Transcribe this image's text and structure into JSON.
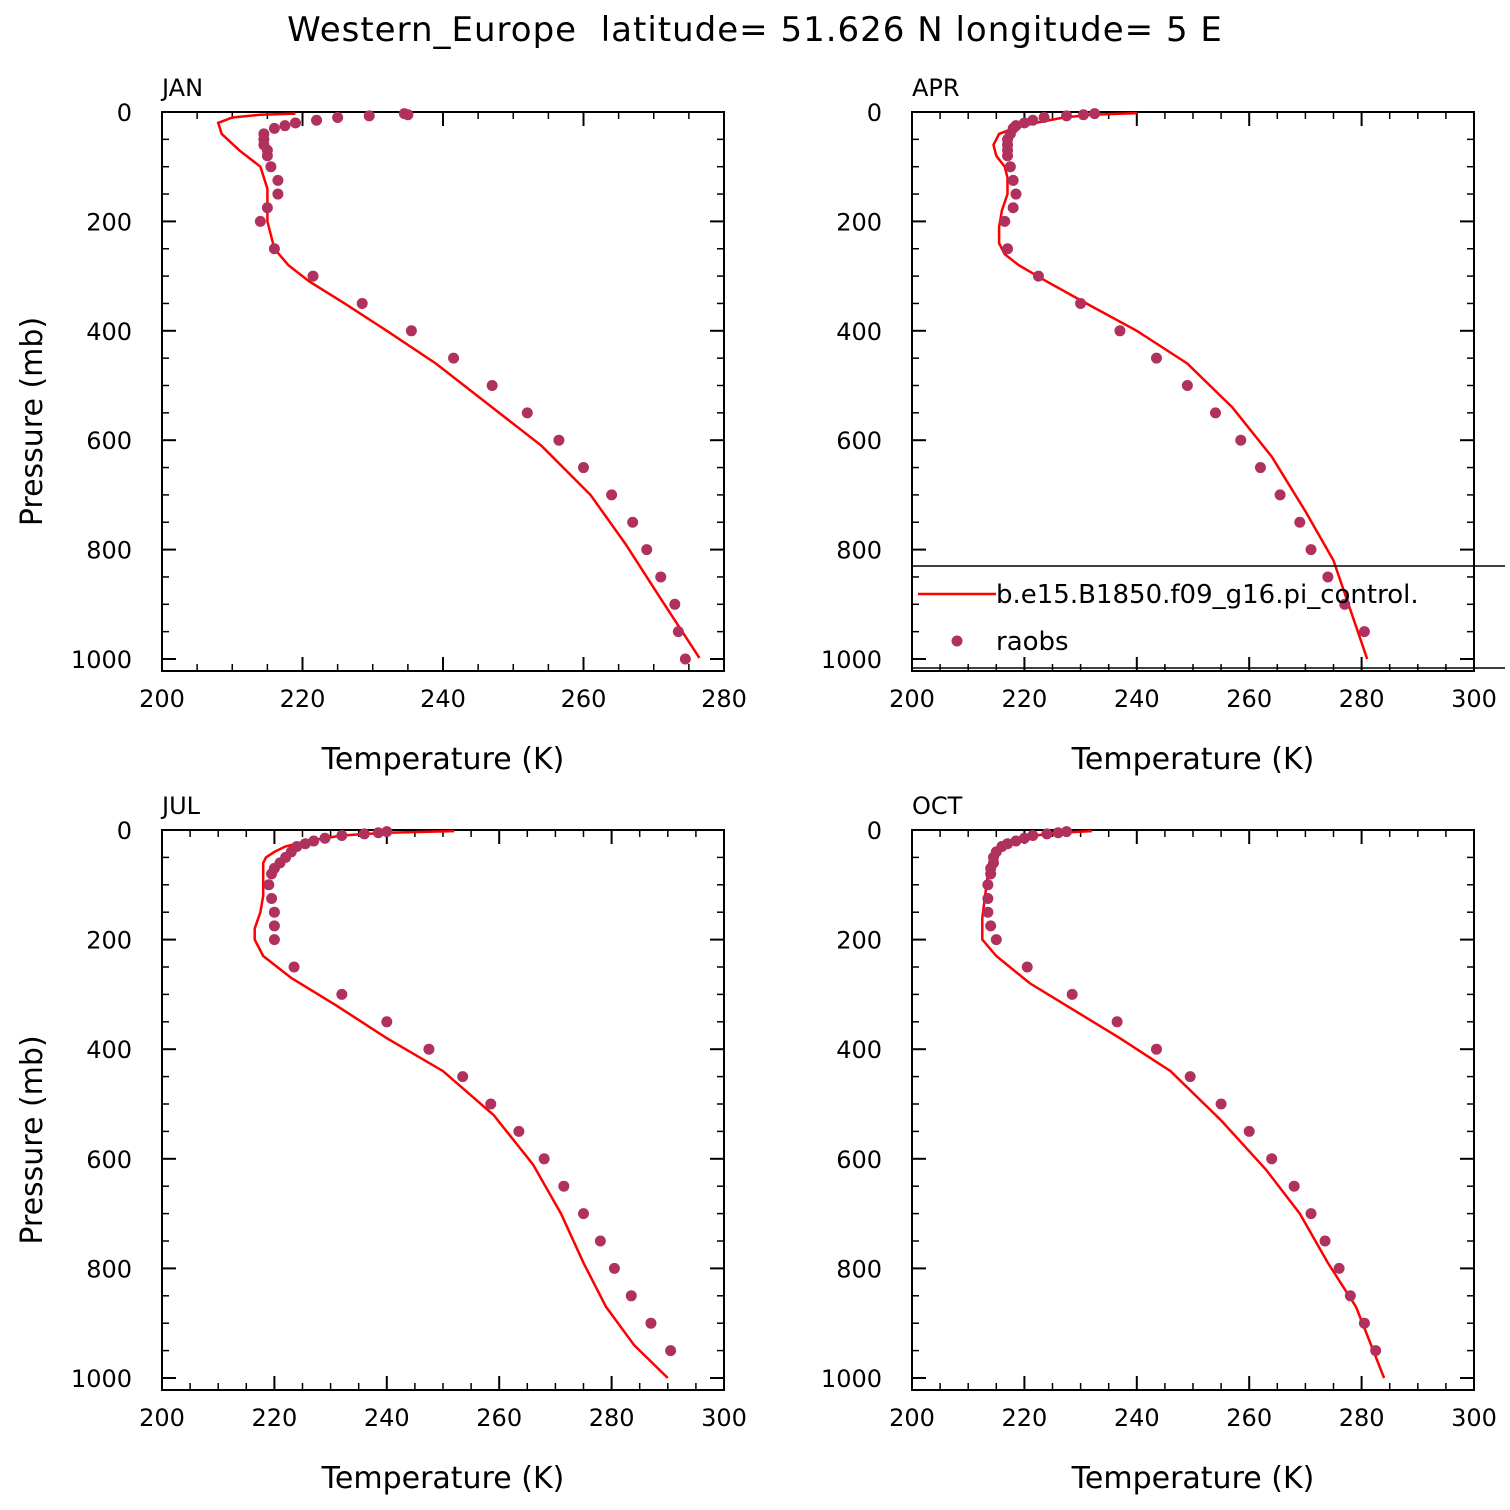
{
  "title": "Western_Europe  latitude= 51.626 N longitude= 5 E",
  "colors": {
    "model": "#ff0000",
    "obs": "#b0305e",
    "axes": "#000000"
  },
  "legend": {
    "model_label": "b.e15.B1850.f09_g16.pi_control.",
    "obs_label": "raobs"
  },
  "chart_data": [
    {
      "type": "line",
      "panel": "JAN",
      "xlabel": "Temperature (K)",
      "ylabel": "Pressure (mb)",
      "xlim": [
        200,
        280
      ],
      "xticks": [
        200,
        220,
        240,
        260,
        280
      ],
      "ylim": [
        0,
        1000
      ],
      "yticks": [
        0,
        200,
        400,
        600,
        800,
        1000
      ],
      "y_inverted": true,
      "series": [
        {
          "kind": "line",
          "x": [
            219,
            214,
            210,
            208,
            208.5,
            211,
            214,
            215,
            215,
            215,
            216,
            218,
            221,
            226,
            232,
            239,
            246,
            254,
            261,
            266,
            271,
            276.5
          ],
          "y": [
            3,
            5,
            10,
            20,
            40,
            70,
            100,
            140,
            170,
            200,
            250,
            280,
            310,
            350,
            400,
            460,
            530,
            610,
            700,
            790,
            890,
            998
          ]
        },
        {
          "kind": "scatter",
          "name": "raobs",
          "x": [
            234.5,
            235,
            229.5,
            225,
            222,
            219,
            217.5,
            216,
            214.5,
            214.5,
            214.5,
            215,
            215,
            215.5,
            216.5,
            216.5,
            215,
            214,
            216,
            221.5,
            228.5,
            235.5,
            241.5,
            247,
            252,
            256.5,
            260,
            264,
            267,
            269,
            271,
            273,
            273.5,
            274.5
          ],
          "y": [
            3,
            5,
            7,
            10,
            15,
            20,
            25,
            30,
            40,
            50,
            60,
            70,
            80,
            100,
            125,
            150,
            175,
            200,
            250,
            300,
            350,
            400,
            450,
            500,
            550,
            600,
            650,
            700,
            750,
            800,
            850,
            900,
            950,
            1000
          ]
        }
      ]
    },
    {
      "type": "line",
      "panel": "APR",
      "xlabel": "Temperature (K)",
      "ylabel": "",
      "xlim": [
        200,
        300
      ],
      "xticks": [
        200,
        220,
        240,
        260,
        280,
        300
      ],
      "ylim": [
        0,
        1000
      ],
      "yticks": [
        0,
        200,
        400,
        600,
        800,
        1000
      ],
      "y_inverted": true,
      "series": [
        {
          "kind": "line",
          "x": [
            240,
            232,
            227,
            222,
            218,
            215.5,
            214.5,
            215,
            216.5,
            217,
            217,
            216,
            215.5,
            215.5,
            216.5,
            219,
            224,
            231,
            240,
            249,
            257,
            264,
            270,
            275,
            281
          ],
          "y": [
            2,
            5,
            10,
            20,
            30,
            40,
            60,
            80,
            100,
            120,
            150,
            180,
            210,
            240,
            260,
            280,
            310,
            350,
            400,
            460,
            540,
            630,
            730,
            820,
            1000
          ]
        },
        {
          "kind": "scatter",
          "name": "raobs",
          "x": [
            232.5,
            230.5,
            227.5,
            223.5,
            221.5,
            220,
            218.5,
            218,
            217.5,
            217,
            217,
            217,
            217,
            217.5,
            218,
            218.5,
            218,
            216.5,
            217,
            222.5,
            230,
            237,
            243.5,
            249,
            254,
            258.5,
            262,
            265.5,
            269,
            271,
            274,
            277,
            280.5
          ],
          "y": [
            3,
            5,
            7,
            10,
            15,
            20,
            25,
            30,
            40,
            50,
            60,
            70,
            80,
            100,
            125,
            150,
            175,
            200,
            250,
            300,
            350,
            400,
            450,
            500,
            550,
            600,
            650,
            700,
            750,
            800,
            850,
            900,
            950
          ]
        }
      ]
    },
    {
      "type": "line",
      "panel": "JUL",
      "xlabel": "Temperature (K)",
      "ylabel": "Pressure (mb)",
      "xlim": [
        200,
        300
      ],
      "xticks": [
        200,
        220,
        240,
        260,
        280,
        300
      ],
      "ylim": [
        0,
        1000
      ],
      "yticks": [
        0,
        200,
        400,
        600,
        800,
        1000
      ],
      "y_inverted": true,
      "series": [
        {
          "kind": "line",
          "x": [
            252,
            240,
            232,
            226,
            222,
            220,
            218.5,
            218,
            218,
            218,
            218,
            217.5,
            216.5,
            216.5,
            218,
            223,
            231,
            240,
            250,
            259,
            266,
            271,
            275,
            279,
            284,
            290
          ],
          "y": [
            2,
            5,
            10,
            20,
            30,
            40,
            50,
            60,
            70,
            80,
            120,
            150,
            180,
            200,
            230,
            270,
            320,
            380,
            440,
            520,
            610,
            700,
            790,
            870,
            940,
            1000
          ]
        },
        {
          "kind": "scatter",
          "name": "raobs",
          "x": [
            240,
            238.5,
            236,
            232,
            229,
            227,
            225.5,
            224,
            223,
            222,
            221,
            220,
            219.5,
            219,
            219.5,
            220,
            220,
            220,
            223.5,
            232,
            240,
            247.5,
            253.5,
            258.5,
            263.5,
            268,
            271.5,
            275,
            278,
            280.5,
            283.5,
            287,
            290.5
          ],
          "y": [
            3,
            5,
            7,
            10,
            15,
            20,
            25,
            30,
            40,
            50,
            60,
            70,
            80,
            100,
            125,
            150,
            175,
            200,
            250,
            300,
            350,
            400,
            450,
            500,
            550,
            600,
            650,
            700,
            750,
            800,
            850,
            900,
            950
          ]
        }
      ]
    },
    {
      "type": "line",
      "panel": "OCT",
      "xlabel": "Temperature (K)",
      "ylabel": "",
      "xlim": [
        200,
        300
      ],
      "xticks": [
        200,
        220,
        240,
        260,
        280,
        300
      ],
      "ylim": [
        0,
        1000
      ],
      "yticks": [
        0,
        200,
        400,
        600,
        800,
        1000
      ],
      "y_inverted": true,
      "series": [
        {
          "kind": "line",
          "x": [
            232,
            226,
            222,
            218,
            216,
            215,
            214.5,
            214,
            213.5,
            213,
            212.5,
            212.5,
            212.5,
            215,
            221,
            229,
            237,
            246,
            255,
            263,
            269,
            274,
            279,
            284
          ],
          "y": [
            2,
            5,
            10,
            20,
            30,
            40,
            50,
            60,
            80,
            120,
            160,
            190,
            200,
            230,
            280,
            330,
            380,
            440,
            530,
            620,
            700,
            790,
            870,
            1000
          ]
        },
        {
          "kind": "scatter",
          "name": "raobs",
          "x": [
            227.5,
            226,
            224,
            221.5,
            220,
            218.5,
            217,
            216,
            215,
            214.5,
            214.5,
            214,
            214,
            213.5,
            213.5,
            213.5,
            214,
            215,
            220.5,
            228.5,
            236.5,
            243.5,
            249.5,
            255,
            260,
            264,
            268,
            271,
            273.5,
            276,
            278,
            280.5,
            282.5
          ],
          "y": [
            3,
            5,
            7,
            10,
            15,
            20,
            25,
            30,
            40,
            50,
            60,
            70,
            80,
            100,
            125,
            150,
            175,
            200,
            250,
            300,
            350,
            400,
            450,
            500,
            550,
            600,
            650,
            700,
            750,
            800,
            850,
            900,
            950
          ]
        }
      ]
    }
  ]
}
